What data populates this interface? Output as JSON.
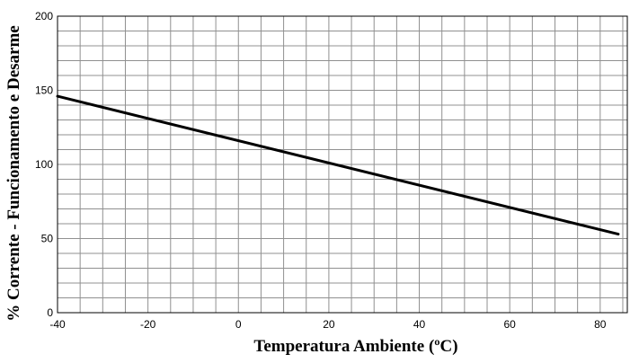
{
  "chart_data": {
    "type": "line",
    "title": "",
    "xlabel": "Temperatura Ambiente (ºC)",
    "ylabel": "% Corrente - Funcionamento e Desarme",
    "xlim": [
      -40,
      86
    ],
    "ylim": [
      0,
      200
    ],
    "x_ticks": [
      -40,
      -20,
      0,
      20,
      40,
      60,
      80
    ],
    "y_ticks": [
      0,
      50,
      100,
      150,
      200
    ],
    "x_minor_step": 5,
    "y_minor_step": 10,
    "grid": true,
    "series": [
      {
        "x": [
          -40,
          84
        ],
        "y": [
          146,
          53
        ],
        "color": "#000000"
      }
    ]
  }
}
